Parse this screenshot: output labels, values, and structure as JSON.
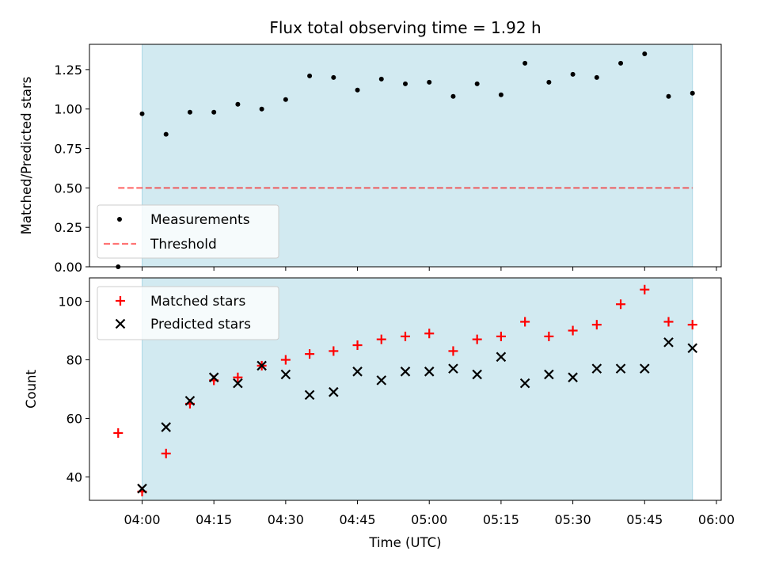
{
  "chart_data": {
    "title": "Flux total observing time = 1.92 h",
    "xlabel": "Time (UTC)",
    "x_ticks": [
      "04:00",
      "04:15",
      "04:30",
      "04:45",
      "05:00",
      "05:15",
      "05:30",
      "05:45",
      "06:00"
    ],
    "x": [
      "03:55",
      "04:00",
      "04:05",
      "04:10",
      "04:15",
      "04:20",
      "04:25",
      "04:30",
      "04:35",
      "04:40",
      "04:45",
      "04:50",
      "04:55",
      "05:00",
      "05:05",
      "05:10",
      "05:15",
      "05:20",
      "05:25",
      "05:30",
      "05:35",
      "05:40",
      "05:45",
      "05:50",
      "05:55"
    ],
    "xlim": [
      "03:49",
      "06:01"
    ],
    "observing_window": [
      "04:00",
      "05:55"
    ],
    "colors": {
      "observing_window": "#add8e6",
      "measurements": "#000000",
      "threshold": "#ff0000",
      "matched": "#ff0000",
      "predicted": "#000000"
    },
    "panels": [
      {
        "type": "scatter",
        "ylabel": "Matched/Predicted stars",
        "ylim": [
          0,
          1.41
        ],
        "y_ticks": [
          "0.00",
          "0.25",
          "0.50",
          "0.75",
          "1.00",
          "1.25"
        ],
        "legend_position": "lower-left",
        "series": [
          {
            "name": "Measurements",
            "marker": "dot",
            "values": [
              0.0,
              0.97,
              0.84,
              0.98,
              0.98,
              1.03,
              1.0,
              1.06,
              1.21,
              1.2,
              1.12,
              1.19,
              1.16,
              1.17,
              1.08,
              1.16,
              1.09,
              1.29,
              1.17,
              1.22,
              1.2,
              1.29,
              1.35,
              1.08,
              1.1
            ]
          },
          {
            "name": "Threshold",
            "marker": "dashed-line",
            "x_range": [
              "03:55",
              "05:55"
            ],
            "value": 0.5
          }
        ]
      },
      {
        "type": "scatter",
        "ylabel": "Count",
        "ylim": [
          32,
          108
        ],
        "y_ticks": [
          "40",
          "60",
          "80",
          "100"
        ],
        "legend_position": "upper-left",
        "series": [
          {
            "name": "Matched stars",
            "marker": "plus",
            "values": [
              55,
              35,
              48,
              65,
              73,
              74,
              78,
              80,
              82,
              83,
              85,
              87,
              88,
              89,
              83,
              87,
              88,
              93,
              88,
              90,
              92,
              99,
              104,
              93,
              92
            ]
          },
          {
            "name": "Predicted stars",
            "marker": "x",
            "values": [
              null,
              36,
              57,
              66,
              74,
              72,
              78,
              75,
              68,
              69,
              76,
              73,
              76,
              76,
              77,
              75,
              81,
              72,
              75,
              74,
              77,
              77,
              77,
              86,
              84
            ]
          }
        ]
      }
    ]
  }
}
